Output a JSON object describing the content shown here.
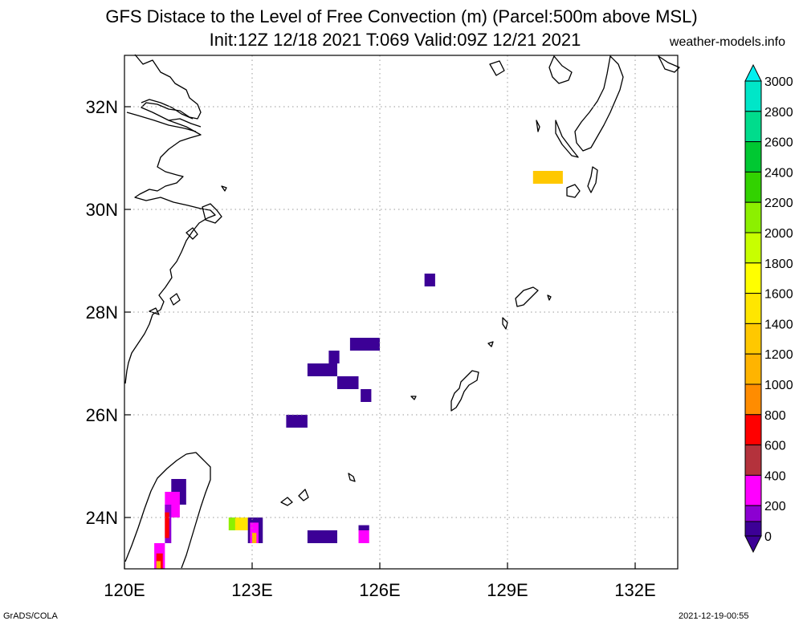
{
  "title": {
    "line1": "GFS Distace to the Level of Free Convection (m) (Parcel:500m above MSL)",
    "line2": "Init:12Z 12/18 2021 T:069 Valid:09Z 12/21 2021"
  },
  "site": "weather-models.info",
  "footer": {
    "left": "GrADS/COLA",
    "right": "2021-12-19-00:55"
  },
  "map": {
    "lon_range": [
      120,
      133
    ],
    "lat_range": [
      23,
      33
    ],
    "lon_ticks": [
      {
        "value": 120,
        "label": "120E"
      },
      {
        "value": 123,
        "label": "123E"
      },
      {
        "value": 126,
        "label": "126E"
      },
      {
        "value": 129,
        "label": "129E"
      },
      {
        "value": 132,
        "label": "132E"
      }
    ],
    "lat_ticks": [
      {
        "value": 24,
        "label": "24N"
      },
      {
        "value": 26,
        "label": "26N"
      },
      {
        "value": 28,
        "label": "28N"
      },
      {
        "value": 30,
        "label": "30N"
      },
      {
        "value": 32,
        "label": "32N"
      }
    ],
    "grid": "dotted"
  },
  "colorbar": {
    "labels": [
      "0",
      "200",
      "400",
      "600",
      "800",
      "1000",
      "1200",
      "1400",
      "1600",
      "1800",
      "2000",
      "2200",
      "2400",
      "2600",
      "2800",
      "3000"
    ],
    "colors": [
      "#3c0096",
      "#8c00d2",
      "#ff00ff",
      "#b4323c",
      "#ff0000",
      "#ff8c00",
      "#ffb400",
      "#ffc800",
      "#ffe600",
      "#ffff00",
      "#c8ff00",
      "#8cf000",
      "#32d200",
      "#00c832",
      "#00dc8c",
      "#00e6c8",
      "#00f0f0"
    ]
  },
  "fields": {
    "patches": [
      {
        "lon": [
          129.6,
          130.3
        ],
        "lat": [
          30.5,
          30.75
        ],
        "color": "#ffc800"
      },
      {
        "lon": [
          127.05,
          127.3
        ],
        "lat": [
          28.5,
          28.75
        ],
        "color": "#3c0096"
      },
      {
        "lon": [
          125.3,
          126.0
        ],
        "lat": [
          27.25,
          27.5
        ],
        "color": "#3c0096"
      },
      {
        "lon": [
          124.3,
          125.0
        ],
        "lat": [
          26.75,
          27.0
        ],
        "color": "#3c0096"
      },
      {
        "lon": [
          124.8,
          125.05
        ],
        "lat": [
          27.0,
          27.25
        ],
        "color": "#3c0096"
      },
      {
        "lon": [
          125.0,
          125.5
        ],
        "lat": [
          26.5,
          26.75
        ],
        "color": "#3c0096"
      },
      {
        "lon": [
          125.55,
          125.8
        ],
        "lat": [
          26.25,
          26.5
        ],
        "color": "#3c0096"
      },
      {
        "lon": [
          123.8,
          124.3
        ],
        "lat": [
          25.75,
          26.0
        ],
        "color": "#3c0096"
      },
      {
        "lon": [
          124.3,
          125.0
        ],
        "lat": [
          23.5,
          23.75
        ],
        "color": "#3c0096"
      },
      {
        "lon": [
          125.5,
          125.75
        ],
        "lat": [
          23.5,
          23.75
        ],
        "color": "#ff00ff"
      },
      {
        "lon": [
          125.5,
          125.75
        ],
        "lat": [
          23.75,
          23.85
        ],
        "color": "#3c0096"
      },
      {
        "lon": [
          122.45,
          122.9
        ],
        "lat": [
          23.75,
          24.0
        ],
        "color": "#ffe600"
      },
      {
        "lon": [
          122.45,
          122.6
        ],
        "lat": [
          23.75,
          24.0
        ],
        "color": "#8cf000"
      },
      {
        "lon": [
          122.9,
          123.25
        ],
        "lat": [
          23.5,
          24.0
        ],
        "color": "#3c0096"
      },
      {
        "lon": [
          122.95,
          123.15
        ],
        "lat": [
          23.5,
          23.9
        ],
        "color": "#ff00ff"
      },
      {
        "lon": [
          123.0,
          123.1
        ],
        "lat": [
          23.5,
          23.7
        ],
        "color": "#ffb400"
      },
      {
        "lon": [
          121.1,
          121.45
        ],
        "lat": [
          24.25,
          24.75
        ],
        "color": "#3c0096"
      },
      {
        "lon": [
          120.95,
          121.3
        ],
        "lat": [
          24.0,
          24.5
        ],
        "color": "#ff00ff"
      },
      {
        "lon": [
          120.95,
          121.1
        ],
        "lat": [
          23.5,
          24.25
        ],
        "color": "#8c00d2"
      },
      {
        "lon": [
          120.95,
          121.05
        ],
        "lat": [
          23.6,
          24.1
        ],
        "color": "#ff0000"
      },
      {
        "lon": [
          120.7,
          120.95
        ],
        "lat": [
          23.0,
          23.5
        ],
        "color": "#ff00ff"
      },
      {
        "lon": [
          120.75,
          120.9
        ],
        "lat": [
          23.0,
          23.3
        ],
        "color": "#ff0000"
      },
      {
        "lon": [
          120.75,
          120.85
        ],
        "lat": [
          23.0,
          23.15
        ],
        "color": "#ffb400"
      }
    ]
  }
}
